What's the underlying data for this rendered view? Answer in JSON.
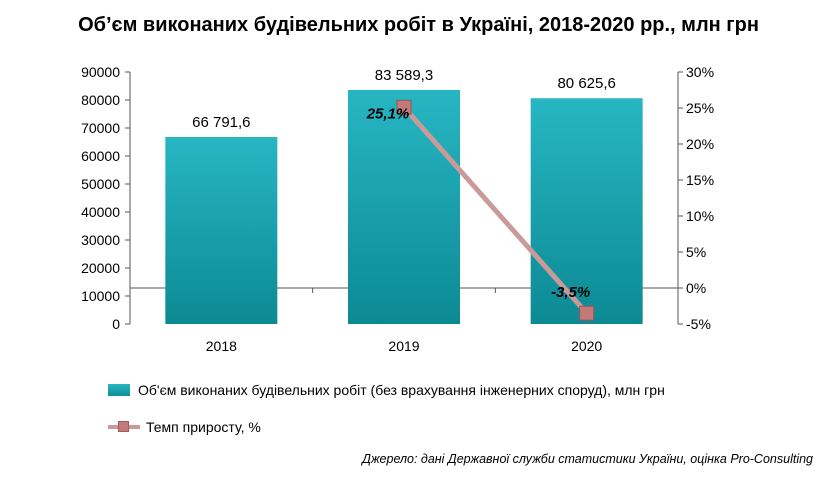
{
  "chart_data": {
    "type": "bar",
    "title": "Об’єм виконаних будівельних робіт в Україні, 2018-2020 рр., млн грн",
    "categories": [
      "2018",
      "2019",
      "2020"
    ],
    "series": [
      {
        "name": "Об'єм виконаних будівельних робіт (без врахування інженерних споруд), млн  грн",
        "type": "bar",
        "axis": "left",
        "values": [
          66791.6,
          83589.3,
          80625.6
        ],
        "labels": [
          "66 791,6",
          "83 589,3",
          "80 625,6"
        ],
        "color": "#1aa5b0"
      },
      {
        "name": "Темп приросту,  %",
        "type": "line",
        "axis": "right",
        "values": [
          null,
          25.1,
          -3.5
        ],
        "labels": [
          "",
          "25,1%",
          "-3,5%"
        ],
        "color": "#c99a98"
      }
    ],
    "y_left": {
      "min": 0,
      "max": 90000,
      "ticks": [
        "0",
        "10000",
        "20000",
        "30000",
        "40000",
        "50000",
        "60000",
        "70000",
        "80000",
        "90000"
      ]
    },
    "y_right": {
      "min": -5,
      "max": 30,
      "ticks": [
        "-5%",
        "0%",
        "5%",
        "10%",
        "15%",
        "20%",
        "25%",
        "30%"
      ]
    },
    "grid": false,
    "legend": "bottom"
  },
  "source_note": "Джерело: дані Державної служби статистики України, оцінка Pro-Consulting"
}
